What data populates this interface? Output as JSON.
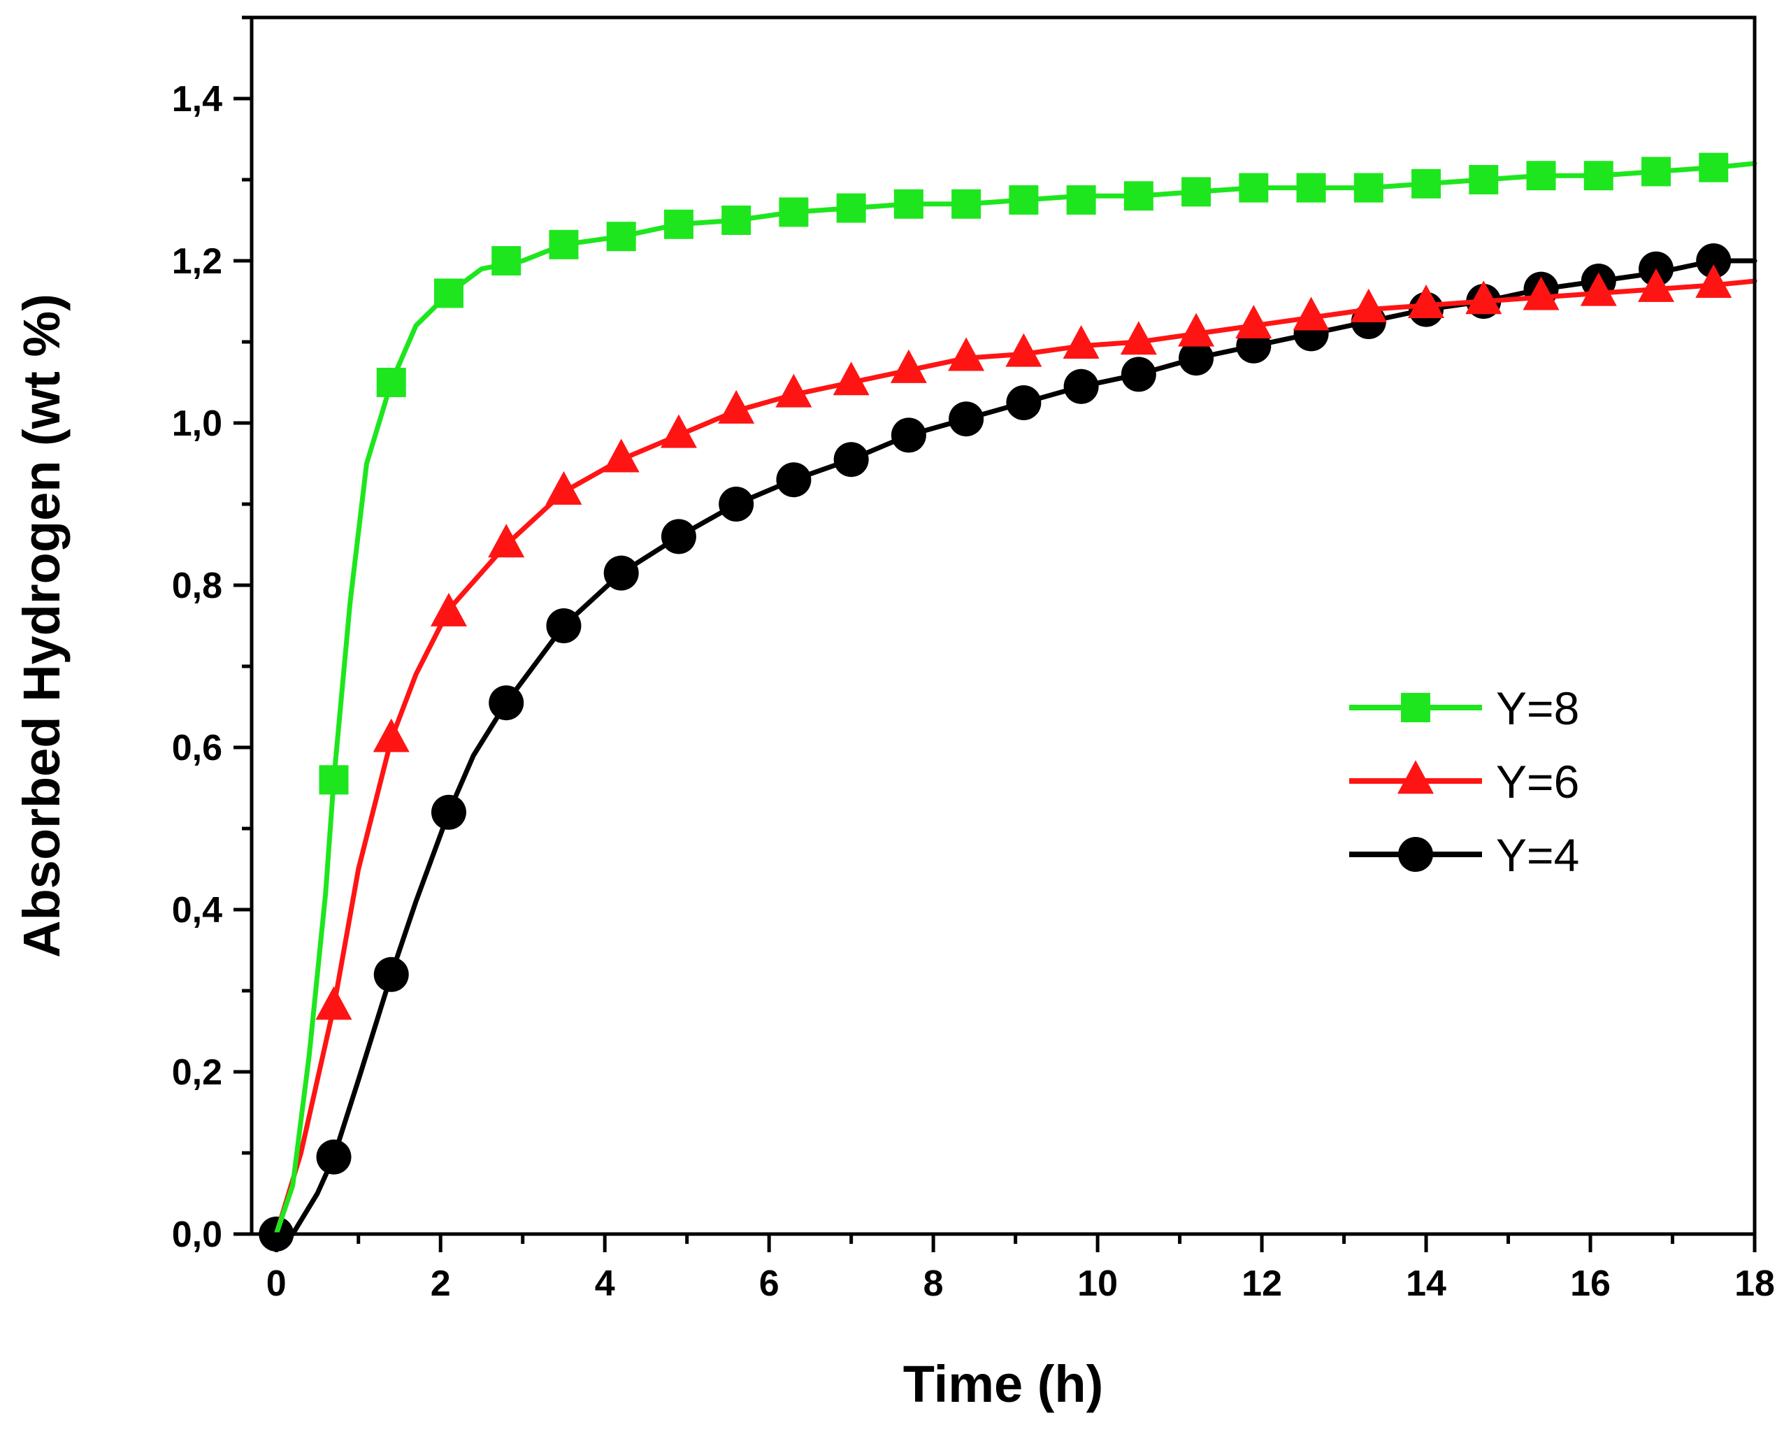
{
  "chart_data": {
    "type": "line",
    "title": "",
    "xlabel": "Time (h)",
    "ylabel": "Absorbed Hydrogen (wt %)",
    "xlim": [
      -0.3,
      18
    ],
    "ylim": [
      0,
      1.5
    ],
    "x_ticks": [
      0,
      2,
      4,
      6,
      8,
      10,
      12,
      14,
      16,
      18
    ],
    "x_tick_labels": [
      "0",
      "2",
      "4",
      "6",
      "8",
      "10",
      "12",
      "14",
      "16",
      "18"
    ],
    "y_ticks": [
      0,
      0.2,
      0.4,
      0.6,
      0.8,
      1.0,
      1.2,
      1.4
    ],
    "y_tick_labels": [
      "0,0",
      "0,2",
      "0,4",
      "0,6",
      "0,8",
      "1,0",
      "1,2",
      "1,4"
    ],
    "grid": false,
    "legend_position": "center-right",
    "series": [
      {
        "name": "Y=8",
        "color": "#1ee61e",
        "marker": "square",
        "curve_x": [
          0,
          0.2,
          0.4,
          0.6,
          0.7,
          0.9,
          1.1,
          1.4,
          1.7,
          2.1,
          2.5,
          3.0,
          3.5,
          4.2,
          4.9,
          5.6,
          6.3,
          7.0,
          7.7,
          8.4,
          9.1,
          9.8,
          10.5,
          11.2,
          11.9,
          12.6,
          13.3,
          14.0,
          14.7,
          15.4,
          16.1,
          16.8,
          17.5,
          18.0
        ],
        "curve_y": [
          0.0,
          0.06,
          0.22,
          0.42,
          0.56,
          0.78,
          0.95,
          1.05,
          1.12,
          1.16,
          1.19,
          1.2,
          1.22,
          1.23,
          1.245,
          1.25,
          1.26,
          1.265,
          1.27,
          1.27,
          1.275,
          1.28,
          1.28,
          1.285,
          1.29,
          1.29,
          1.29,
          1.295,
          1.3,
          1.305,
          1.305,
          1.31,
          1.315,
          1.32
        ],
        "marker_x": [
          0.7,
          1.4,
          2.1,
          2.8,
          3.5,
          4.2,
          4.9,
          5.6,
          6.3,
          7.0,
          7.7,
          8.4,
          9.1,
          9.8,
          10.5,
          11.2,
          11.9,
          12.6,
          13.3,
          14.0,
          14.7,
          15.4,
          16.1,
          16.8,
          17.5
        ],
        "marker_y": [
          0.56,
          1.05,
          1.16,
          1.2,
          1.22,
          1.23,
          1.245,
          1.25,
          1.26,
          1.265,
          1.27,
          1.27,
          1.275,
          1.275,
          1.28,
          1.285,
          1.29,
          1.29,
          1.29,
          1.295,
          1.3,
          1.305,
          1.305,
          1.31,
          1.315
        ]
      },
      {
        "name": "Y=6",
        "color": "#ff1414",
        "marker": "triangle",
        "curve_x": [
          0,
          0.3,
          0.7,
          1.0,
          1.4,
          1.7,
          2.1,
          2.8,
          3.5,
          4.2,
          4.9,
          5.6,
          6.3,
          7.0,
          7.7,
          8.4,
          9.1,
          9.8,
          10.5,
          11.2,
          11.9,
          12.6,
          13.3,
          14.0,
          14.7,
          15.4,
          16.1,
          16.8,
          17.5,
          18.0
        ],
        "curve_y": [
          0.0,
          0.1,
          0.28,
          0.45,
          0.61,
          0.69,
          0.77,
          0.85,
          0.915,
          0.955,
          0.985,
          1.015,
          1.035,
          1.05,
          1.065,
          1.08,
          1.085,
          1.095,
          1.1,
          1.11,
          1.12,
          1.13,
          1.14,
          1.145,
          1.15,
          1.155,
          1.16,
          1.165,
          1.17,
          1.175
        ],
        "marker_x": [
          0.7,
          1.4,
          2.1,
          2.8,
          3.5,
          4.2,
          4.9,
          5.6,
          6.3,
          7.0,
          7.7,
          8.4,
          9.1,
          9.8,
          10.5,
          11.2,
          11.9,
          12.6,
          13.3,
          14.0,
          14.7,
          15.4,
          16.1,
          16.8,
          17.5
        ],
        "marker_y": [
          0.28,
          0.61,
          0.765,
          0.85,
          0.915,
          0.955,
          0.985,
          1.015,
          1.035,
          1.05,
          1.065,
          1.08,
          1.085,
          1.095,
          1.1,
          1.11,
          1.12,
          1.13,
          1.14,
          1.145,
          1.15,
          1.155,
          1.16,
          1.165,
          1.17
        ]
      },
      {
        "name": "Y=4",
        "color": "#000000",
        "marker": "circle",
        "curve_x": [
          0,
          0.2,
          0.5,
          0.7,
          1.0,
          1.4,
          1.7,
          2.1,
          2.4,
          2.8,
          3.5,
          4.2,
          4.9,
          5.6,
          6.3,
          7.0,
          7.7,
          8.4,
          9.1,
          9.8,
          10.5,
          11.2,
          11.9,
          12.6,
          13.3,
          14.0,
          14.7,
          15.4,
          16.1,
          16.8,
          17.5,
          18.0
        ],
        "curve_y": [
          0.0,
          0.0,
          0.05,
          0.095,
          0.19,
          0.32,
          0.41,
          0.52,
          0.59,
          0.655,
          0.75,
          0.815,
          0.86,
          0.9,
          0.93,
          0.955,
          0.985,
          1.005,
          1.025,
          1.045,
          1.06,
          1.08,
          1.095,
          1.11,
          1.125,
          1.14,
          1.15,
          1.165,
          1.175,
          1.185,
          1.2,
          1.2
        ],
        "marker_x": [
          0.0,
          0.7,
          1.4,
          2.1,
          2.8,
          3.5,
          4.2,
          4.9,
          5.6,
          6.3,
          7.0,
          7.7,
          8.4,
          9.1,
          9.8,
          10.5,
          11.2,
          11.9,
          12.6,
          13.3,
          14.0,
          14.7,
          15.4,
          16.1,
          16.8,
          17.5
        ],
        "marker_y": [
          0.0,
          0.095,
          0.32,
          0.52,
          0.655,
          0.75,
          0.815,
          0.86,
          0.9,
          0.93,
          0.955,
          0.985,
          1.005,
          1.025,
          1.045,
          1.06,
          1.08,
          1.095,
          1.11,
          1.125,
          1.14,
          1.15,
          1.165,
          1.175,
          1.19,
          1.2
        ]
      }
    ]
  }
}
